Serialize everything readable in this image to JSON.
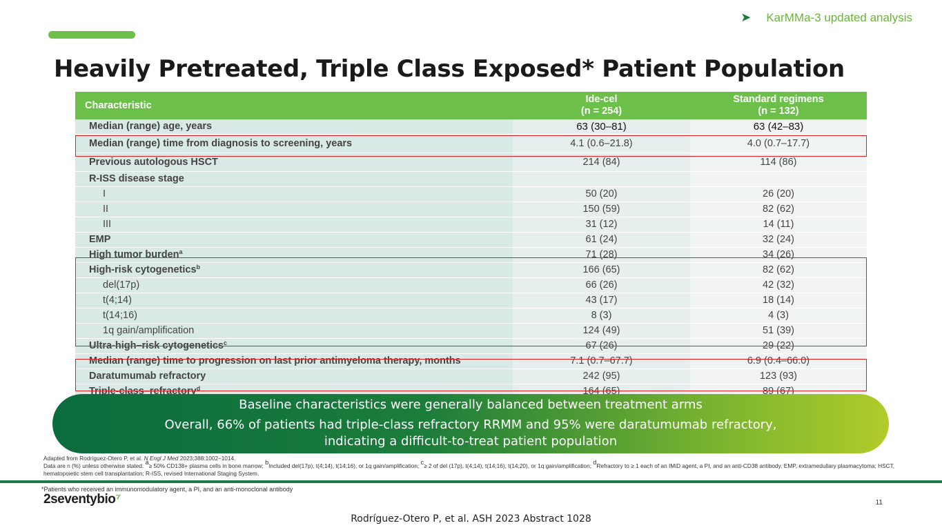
{
  "header": {
    "tag": "KarMMa-3 updated analysis",
    "title": "Heavily Pretreated, Triple Class Exposed* Patient Population"
  },
  "table": {
    "col_characteristic": "Characteristic",
    "col_idecel_name": "Ide-cel",
    "col_idecel_n": "(n = 254)",
    "col_std_name": "Standard regimens",
    "col_std_n": "(n = 132)",
    "rows": [
      {
        "label": "Median (range) age, years",
        "sup": "",
        "ide": "63 (30–81)",
        "std": "63 (42–83)"
      },
      {
        "label": "Median (range) time from diagnosis to screening, years",
        "sup": "",
        "ide": "4.1 (0.6–21.8)",
        "std": "4.0 (0.7–17.7)"
      },
      {
        "label": "Previous autologous HSCT",
        "sup": "",
        "ide": "214 (84)",
        "std": "114 (86)"
      },
      {
        "label": "R-ISS disease stage",
        "sup": "",
        "ide": "",
        "std": ""
      },
      {
        "label": "I",
        "sup": "",
        "ide": "50 (20)",
        "std": "26 (20)"
      },
      {
        "label": "II",
        "sup": "",
        "ide": "150 (59)",
        "std": "82 (62)"
      },
      {
        "label": "III",
        "sup": "",
        "ide": "31 (12)",
        "std": "14 (11)"
      },
      {
        "label": "EMP",
        "sup": "",
        "ide": "61 (24)",
        "std": "32 (24)"
      },
      {
        "label": "High tumor burden",
        "sup": "a",
        "ide": "71 (28)",
        "std": "34 (26)"
      },
      {
        "label": "High-risk cytogenetics",
        "sup": "b",
        "ide": "166 (65)",
        "std": "82 (62)"
      },
      {
        "label": "del(17p)",
        "sup": "",
        "ide": "66 (26)",
        "std": "42 (32)"
      },
      {
        "label": "t(4;14)",
        "sup": "",
        "ide": "43 (17)",
        "std": "18 (14)"
      },
      {
        "label": "t(14;16)",
        "sup": "",
        "ide": "8 (3)",
        "std": "4 (3)"
      },
      {
        "label": "1q gain/amplification",
        "sup": "",
        "ide": "124 (49)",
        "std": "51 (39)"
      },
      {
        "label": "Ultra-high–risk cytogenetics",
        "sup": "c",
        "ide": "67 (26)",
        "std": "29 (22)"
      },
      {
        "label": "Median (range) time to progression on last prior antimyeloma therapy, months",
        "sup": "",
        "ide": "7.1 (0.7–67.7)",
        "std": "6.9 (0.4–66.0)"
      },
      {
        "label": "Daratumumab refractory",
        "sup": "",
        "ide": "242 (95)",
        "std": "123 (93)"
      },
      {
        "label": "Triple-class–refractory",
        "sup": "d",
        "ide": "164 (65)",
        "std": "89 (67)"
      }
    ]
  },
  "banner": {
    "line1": "Baseline characteristics were generally balanced between treatment arms",
    "line2a": "Overall, 66% of patients had triple-class refractory RRMM and 95% were daratumumab refractory,",
    "line2b": "indicating a difficult-to-treat patient population"
  },
  "notes": {
    "adapted_prefix": "Adapted from Rodríguez-Otero P, et al. ",
    "journal": "N Engl J Med",
    "adapted_suffix": " 2023;388:1002–1014.",
    "line2_start": "Data are n (%) unless otherwise stated. ",
    "fn_a_mark": "a",
    "fn_a_text": "≥ 50% CD138+ plasma cells in bone marrow; ",
    "fn_b_mark": "b",
    "fn_b_text": "Included del(17p), t(4;14), t(14;16), or 1q gain/amplification; ",
    "fn_c_mark": "c",
    "fn_c_text": "≥ 2 of del (17p), t(4;14), t(14;16), t(14;20), or 1q gain/amplification; ",
    "fn_d_mark": "d",
    "fn_d_text": "Refractory to ≥ 1 each of an IMiD agent, a PI, and an anti-CD38 antibody. EMP, extramedullary plasmacytoma; HSCT, hematopoietic stem cell transplantation; R-ISS, revised International Staging System."
  },
  "footer": {
    "asterisk_note": "*Patients who received an immunomodulatory agent, a PI, and an anti-monoclonal antibody",
    "logo_text": "2seventybio",
    "page_number": "11",
    "citation": "Rodríguez-Otero P, et al. ASH 2023 Abstract 1028"
  },
  "colors": {
    "header_green": "#6cc04a",
    "highlight_red": "#e02020",
    "banner_dark": "#0a6b3f",
    "banner_light": "#b0cc2a"
  }
}
